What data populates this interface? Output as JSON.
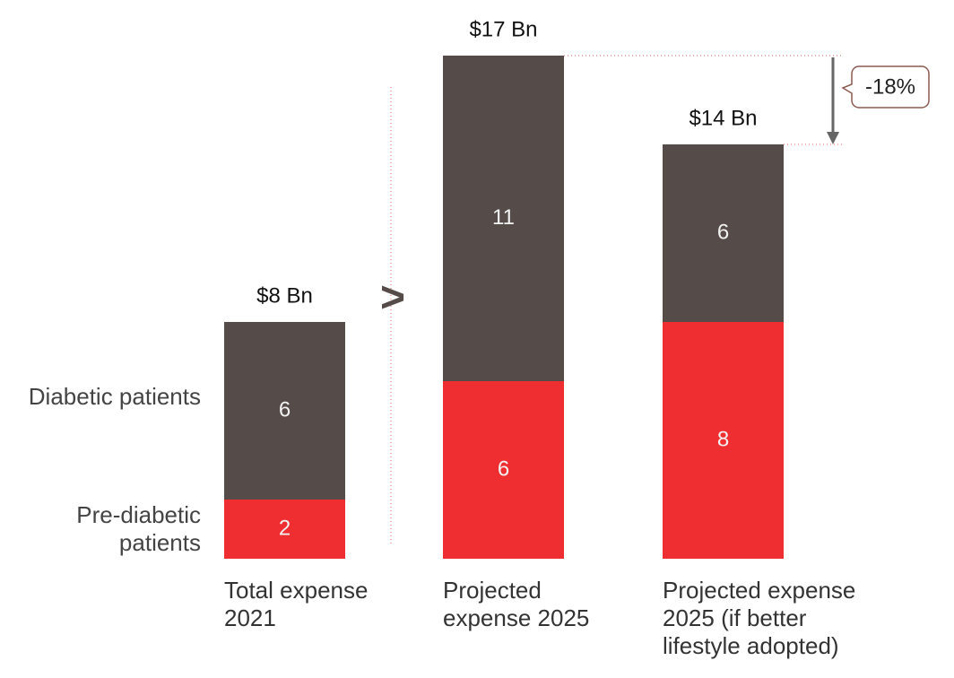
{
  "chart_data": {
    "type": "stacked_bar",
    "categories": [
      "Total expense 2021",
      "Projected expense 2025",
      "Projected expense 2025 (if better lifestyle adopted)"
    ],
    "series": [
      {
        "name": "Pre-diabetic patients",
        "color": "#ee2e31",
        "values": [
          2,
          6,
          8
        ]
      },
      {
        "name": "Diabetic patients",
        "color": "#554c4a",
        "values": [
          6,
          11,
          6
        ]
      }
    ],
    "totals": {
      "values": [
        8,
        17,
        14
      ],
      "value_labels": [
        "$8 Bn",
        "$17 Bn",
        "$14 Bn"
      ]
    },
    "ylim": [
      0,
      17
    ],
    "comparison_symbol": ">",
    "annotation": "-18%"
  }
}
